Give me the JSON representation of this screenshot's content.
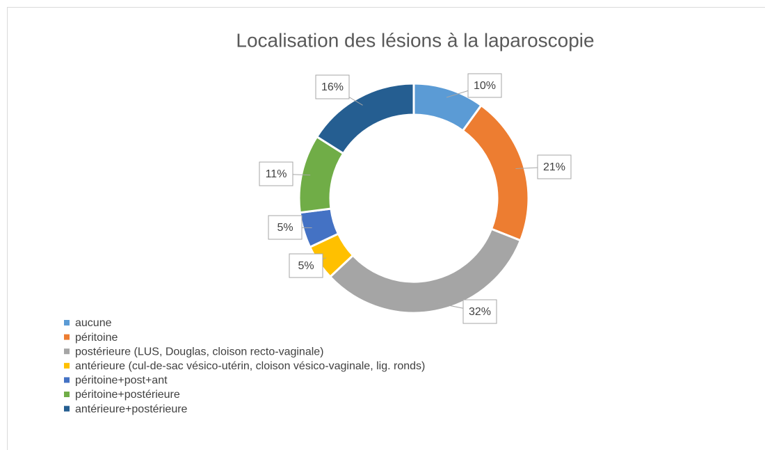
{
  "chart_data": {
    "type": "donut",
    "title": "Localisation des lésions à la laparoscopie",
    "categories": [
      "aucune",
      "péritoine",
      "postérieure (LUS, Douglas, cloison recto-vaginale)",
      "antérieure (cul-de-sac vésico-utérin, cloison vésico-vaginale, lig. ronds)",
      "péritoine+post+ant",
      "péritoine+postérieure",
      "antérieure+postérieure"
    ],
    "values": [
      10,
      21,
      32,
      5,
      5,
      11,
      16
    ],
    "value_labels": [
      "10%",
      "21%",
      "32%",
      "5%",
      "5%",
      "11%",
      "16%"
    ],
    "colors": [
      "#5b9bd5",
      "#ed7d31",
      "#a5a5a5",
      "#ffc000",
      "#4472c4",
      "#70ad47",
      "#255e91"
    ],
    "legend": "bottom-left"
  }
}
